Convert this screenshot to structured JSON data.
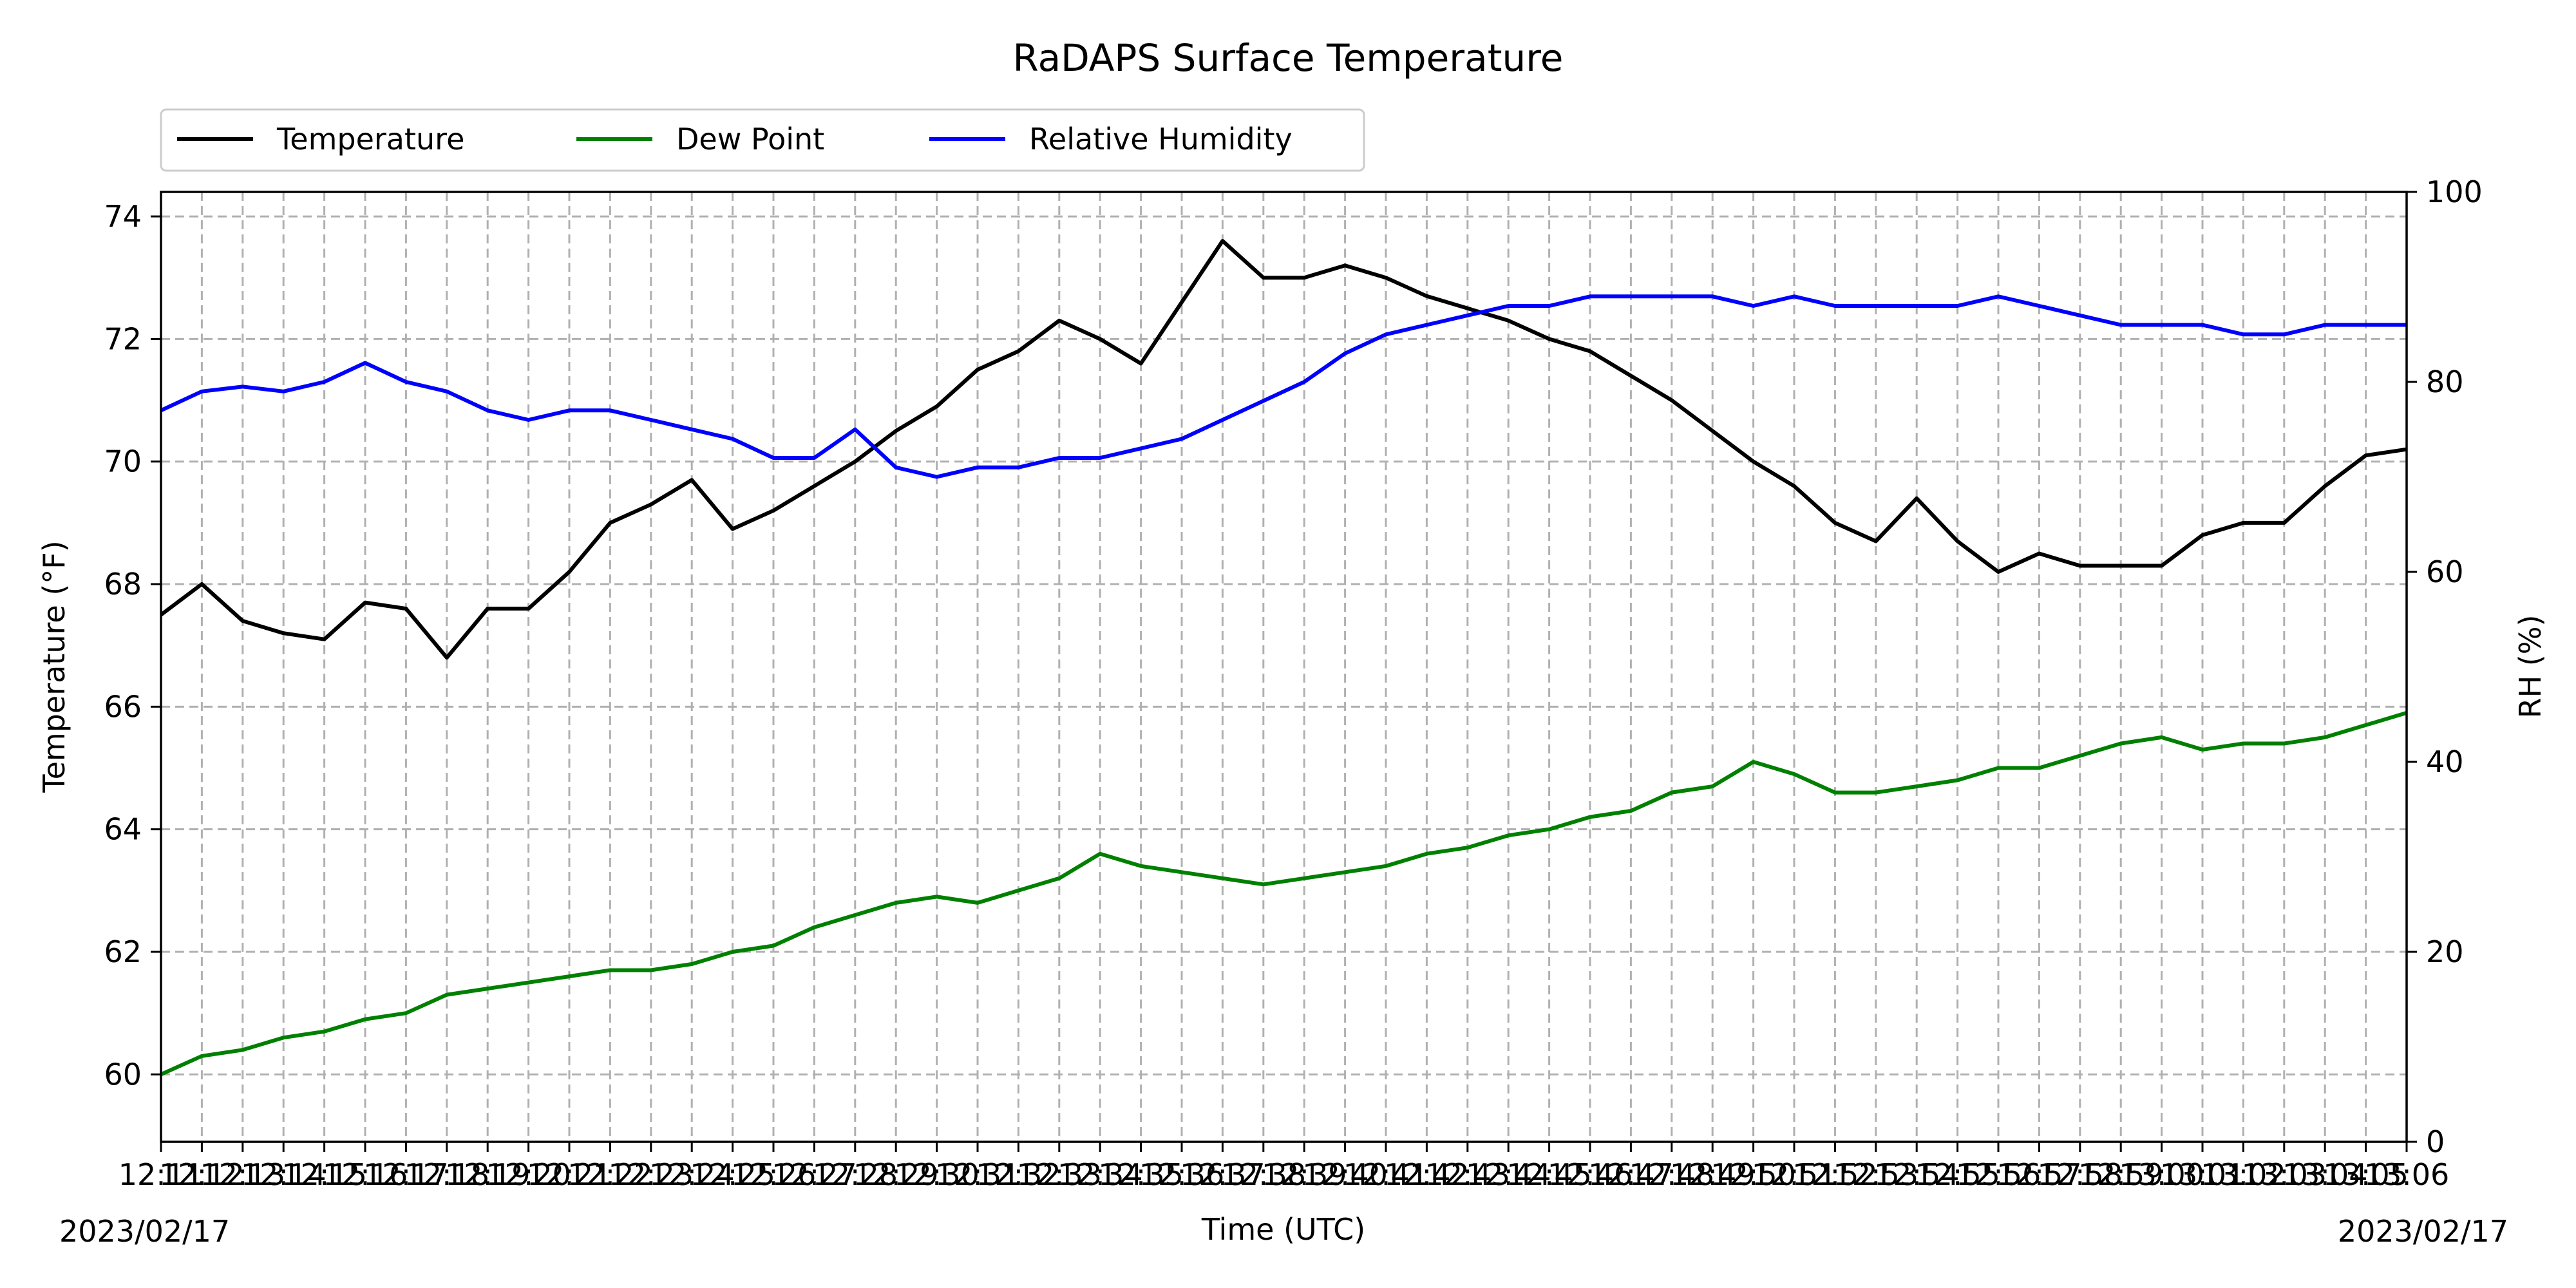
{
  "chart_data": {
    "type": "line",
    "title": "RaDAPS Surface Temperature",
    "xlabel": "Time (UTC)",
    "ylabel": "Temperature ($^\\circ$F)",
    "ylabel_display": "Temperature (°F)",
    "y2label": "RH (%)",
    "date_left": "2023/02/17",
    "date_right": "2023/02/17",
    "xlim": [
      "12:11",
      "13:06"
    ],
    "ylim": [
      58.9,
      74.4
    ],
    "y2lim": [
      0,
      100
    ],
    "y_ticks": [
      60,
      62,
      64,
      66,
      68,
      70,
      72,
      74
    ],
    "y2_ticks": [
      0,
      20,
      40,
      60,
      80,
      100
    ],
    "x_ticks": [
      "12:11",
      "12:13",
      "12:15",
      "12:17",
      "12:19",
      "12:21",
      "12:23",
      "12:25",
      "12:27",
      "12:29",
      "12:31",
      "12:33",
      "12:35",
      "12:37",
      "12:39",
      "12:41",
      "12:43",
      "12:45",
      "12:47",
      "12:49",
      "12:51",
      "12:53",
      "12:55",
      "12:57",
      "12:59",
      "13:01",
      "13:03",
      "13:05",
      "12:12",
      "12:14",
      "12:16",
      "12:18",
      "12:20",
      "12:22",
      "12:24",
      "12:26",
      "12:28",
      "12:30",
      "12:32",
      "12:34",
      "12:36",
      "12:38",
      "12:40",
      "12:42",
      "12:44",
      "12:46",
      "12:48",
      "12:50",
      "12:52",
      "12:54",
      "12:56",
      "12:58",
      "13:00",
      "13:02",
      "13:04",
      "13:06"
    ],
    "x_tick_labels_as_printed": "12135310631351404134651062136515106271365108136510621362062136516216521262212651261062136513610621356106",
    "grid": true,
    "legend_position": "top-left, outside above plot",
    "series": [
      {
        "name": "Temperature",
        "color": "#000000",
        "axis": "left",
        "x": [
          "12:11",
          "12:12",
          "12:13",
          "12:14",
          "12:15",
          "12:16",
          "12:17",
          "12:18",
          "12:19",
          "12:20",
          "12:21",
          "12:22",
          "12:23",
          "12:24",
          "12:25",
          "12:26",
          "12:27",
          "12:28",
          "12:29",
          "12:30",
          "12:31",
          "12:32",
          "12:33",
          "12:34",
          "12:35",
          "12:36",
          "12:37",
          "12:38",
          "12:39",
          "12:40",
          "12:41",
          "12:42",
          "12:43",
          "12:44",
          "12:45",
          "12:46",
          "12:47",
          "12:48",
          "12:49",
          "12:50",
          "12:51",
          "12:52",
          "12:53",
          "12:54",
          "12:55",
          "12:56",
          "12:57",
          "12:58",
          "12:59",
          "13:00",
          "13:01",
          "13:02",
          "13:03",
          "13:04",
          "13:05",
          "13:06"
        ],
        "values": [
          67.5,
          68.0,
          67.4,
          67.2,
          67.1,
          67.7,
          67.6,
          66.8,
          67.6,
          67.6,
          68.2,
          69.0,
          69.3,
          69.7,
          68.9,
          69.2,
          69.6,
          70.0,
          70.5,
          70.9,
          71.5,
          71.8,
          72.3,
          72.0,
          71.6,
          72.6,
          73.6,
          73.0,
          73.0,
          73.2,
          73.0,
          72.7,
          72.5,
          72.3,
          72.0,
          71.8,
          71.4,
          71.0,
          70.5,
          70.0,
          69.6,
          69.0,
          68.7,
          69.4,
          68.7,
          68.2,
          68.5,
          68.3,
          68.3,
          68.3,
          68.8,
          69.0,
          69.0,
          69.6,
          70.1,
          70.2
        ]
      },
      {
        "name": "Dew Point",
        "color": "#008000",
        "axis": "left",
        "x": [
          "12:11",
          "12:12",
          "12:13",
          "12:14",
          "12:15",
          "12:16",
          "12:17",
          "12:18",
          "12:19",
          "12:20",
          "12:21",
          "12:22",
          "12:23",
          "12:24",
          "12:25",
          "12:26",
          "12:27",
          "12:28",
          "12:29",
          "12:30",
          "12:31",
          "12:32",
          "12:33",
          "12:34",
          "12:35",
          "12:36",
          "12:37",
          "12:38",
          "12:39",
          "12:40",
          "12:41",
          "12:42",
          "12:43",
          "12:44",
          "12:45",
          "12:46",
          "12:47",
          "12:48",
          "12:49",
          "12:50",
          "12:51",
          "12:52",
          "12:53",
          "12:54",
          "12:55",
          "12:56",
          "12:57",
          "12:58",
          "12:59",
          "13:00",
          "13:01",
          "13:02",
          "13:03",
          "13:04",
          "13:05",
          "13:06"
        ],
        "values": [
          60.0,
          60.3,
          60.4,
          60.6,
          60.7,
          60.9,
          61.0,
          61.3,
          61.4,
          61.5,
          61.6,
          61.7,
          61.7,
          61.8,
          62.0,
          62.1,
          62.4,
          62.6,
          62.8,
          62.9,
          62.8,
          63.0,
          63.2,
          63.6,
          63.4,
          63.3,
          63.2,
          63.1,
          63.2,
          63.3,
          63.4,
          63.6,
          63.7,
          63.9,
          64.0,
          64.2,
          64.3,
          64.6,
          64.7,
          65.1,
          64.9,
          64.6,
          64.6,
          64.7,
          64.8,
          65.0,
          65.0,
          65.2,
          65.4,
          65.5,
          65.3,
          65.4,
          65.4,
          65.5,
          65.7,
          65.9
        ]
      },
      {
        "name": "Relative Humidity",
        "color": "#0000ff",
        "axis": "right",
        "x": [
          "12:11",
          "12:12",
          "12:13",
          "12:14",
          "12:15",
          "12:16",
          "12:17",
          "12:18",
          "12:19",
          "12:20",
          "12:21",
          "12:22",
          "12:23",
          "12:24",
          "12:25",
          "12:26",
          "12:27",
          "12:28",
          "12:29",
          "12:30",
          "12:31",
          "12:32",
          "12:33",
          "12:34",
          "12:35",
          "12:36",
          "12:37",
          "12:38",
          "12:39",
          "12:40",
          "12:41",
          "12:42",
          "12:43",
          "12:44",
          "12:45",
          "12:46",
          "12:47",
          "12:48",
          "12:49",
          "12:50",
          "12:51",
          "12:52",
          "12:53",
          "12:54",
          "12:55",
          "12:56",
          "12:57",
          "12:58",
          "12:59",
          "13:00",
          "13:01",
          "13:02",
          "13:03",
          "13:04",
          "13:05",
          "13:06"
        ],
        "values": [
          77,
          79,
          79.5,
          79,
          80,
          82,
          80,
          79,
          77,
          76,
          77,
          77,
          76,
          75,
          74,
          72,
          72,
          75,
          71,
          70,
          71,
          71,
          72,
          72,
          73,
          74,
          76,
          78,
          80,
          83,
          85,
          86,
          87,
          88,
          88,
          89,
          89,
          89,
          89,
          88,
          89,
          88,
          88,
          88,
          88,
          89,
          88,
          87,
          86,
          86,
          86,
          85,
          85,
          86,
          86,
          86
        ]
      }
    ]
  }
}
